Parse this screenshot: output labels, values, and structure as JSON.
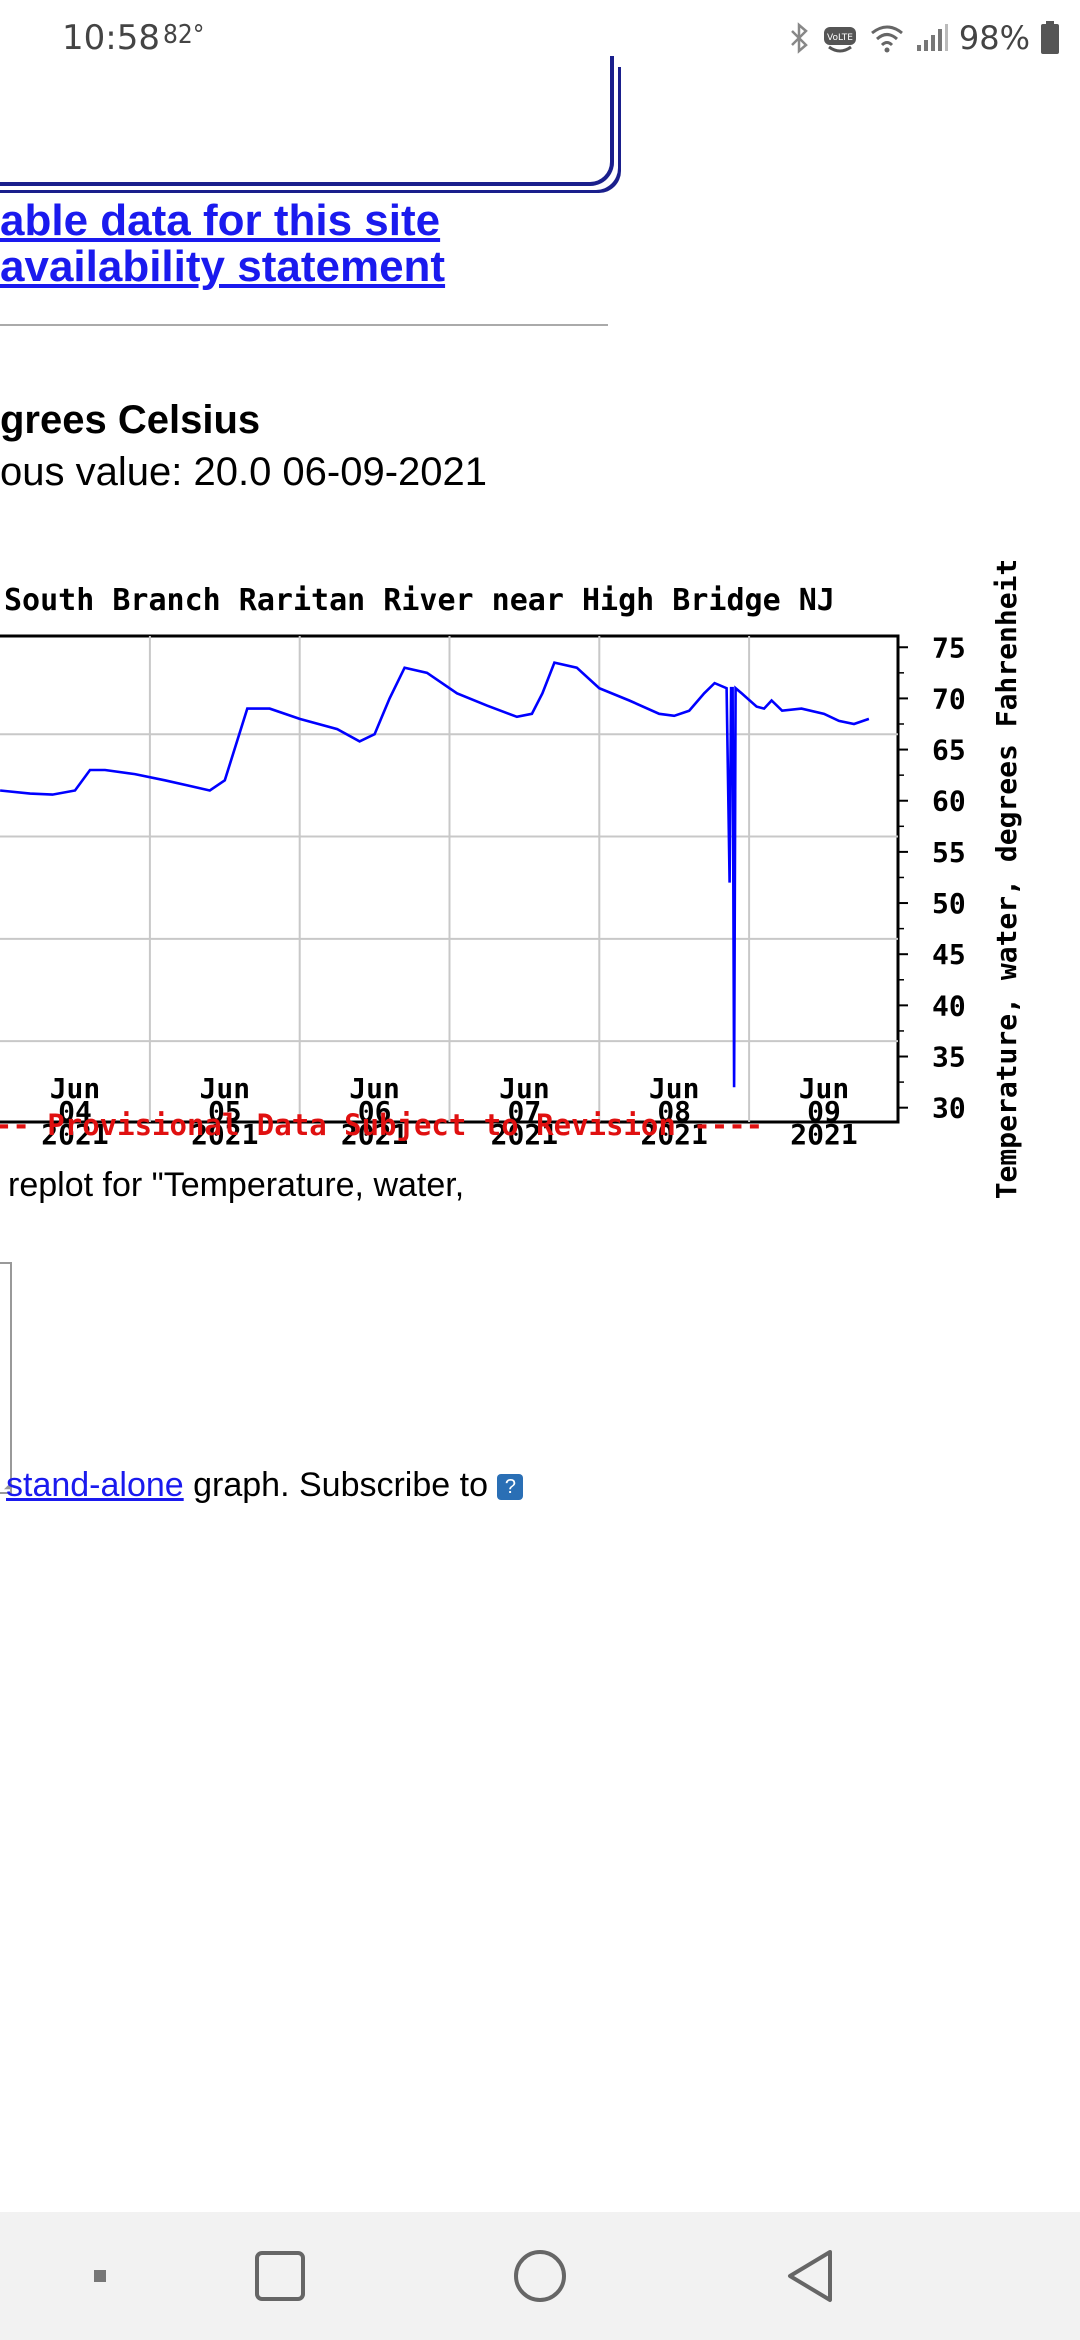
{
  "status_bar": {
    "time": "10:58",
    "temperature": "82°",
    "battery_percent": "98%"
  },
  "links": {
    "available_data": "able data for this site",
    "availability_statement": "availability statement"
  },
  "parameter": {
    "title": "grees Celsius",
    "most_recent": "ous value: 20.0 06-09-2021"
  },
  "chart_data": {
    "type": "line",
    "title": "South Branch Raritan River near High Bridge NJ",
    "ylabel": "Temperature, water, degrees Fahrenheit",
    "ylim": [
      30,
      75
    ],
    "yticks": [
      "75",
      "70",
      "65",
      "60",
      "55",
      "50",
      "45",
      "40",
      "35",
      "30"
    ],
    "xticks": [
      {
        "month": "Jun",
        "day": "04",
        "year": "2021"
      },
      {
        "month": "Jun",
        "day": "05",
        "year": "2021"
      },
      {
        "month": "Jun",
        "day": "06",
        "year": "2021"
      },
      {
        "month": "Jun",
        "day": "07",
        "year": "2021"
      },
      {
        "month": "Jun",
        "day": "08",
        "year": "2021"
      },
      {
        "month": "Jun",
        "day": "09",
        "year": "2021"
      }
    ],
    "xlim_days": [
      3.5,
      9.5
    ],
    "series": [
      {
        "name": "Temperature, water",
        "color": "#0000ff",
        "points": [
          [
            3.5,
            61.0
          ],
          [
            3.7,
            60.7
          ],
          [
            3.85,
            60.6
          ],
          [
            4.0,
            61.0
          ],
          [
            4.1,
            63.0
          ],
          [
            4.2,
            63.0
          ],
          [
            4.4,
            62.6
          ],
          [
            4.6,
            62.0
          ],
          [
            4.75,
            61.5
          ],
          [
            4.9,
            61.0
          ],
          [
            5.0,
            62.0
          ],
          [
            5.15,
            69.0
          ],
          [
            5.3,
            69.0
          ],
          [
            5.5,
            68.0
          ],
          [
            5.75,
            67.0
          ],
          [
            5.9,
            65.8
          ],
          [
            6.0,
            66.5
          ],
          [
            6.1,
            70.0
          ],
          [
            6.2,
            73.0
          ],
          [
            6.35,
            72.5
          ],
          [
            6.55,
            70.5
          ],
          [
            6.75,
            69.3
          ],
          [
            6.95,
            68.2
          ],
          [
            7.05,
            68.5
          ],
          [
            7.12,
            70.5
          ],
          [
            7.2,
            73.5
          ],
          [
            7.35,
            73.0
          ],
          [
            7.5,
            71.0
          ],
          [
            7.7,
            69.8
          ],
          [
            7.9,
            68.5
          ],
          [
            8.0,
            68.3
          ],
          [
            8.1,
            68.8
          ],
          [
            8.2,
            70.5
          ],
          [
            8.27,
            71.5
          ],
          [
            8.35,
            71.0
          ],
          [
            8.37,
            52.0
          ],
          [
            8.38,
            71.0
          ],
          [
            8.39,
            71.0
          ],
          [
            8.4,
            32.0
          ],
          [
            8.41,
            71.0
          ],
          [
            8.45,
            70.5
          ],
          [
            8.55,
            69.2
          ],
          [
            8.6,
            69.0
          ],
          [
            8.65,
            69.8
          ],
          [
            8.72,
            68.8
          ],
          [
            8.85,
            69.0
          ],
          [
            9.0,
            68.5
          ],
          [
            9.1,
            67.8
          ],
          [
            9.2,
            67.5
          ],
          [
            9.3,
            68.0
          ]
        ]
      }
    ],
    "note": "---- Provisional Data Subject to Revision ----"
  },
  "replot_text": "replot for \"Temperature, water,",
  "bottom": {
    "standalone_link": "stand-alone",
    "graph_text": " graph.",
    "subscribe_text": "  Subscribe to "
  },
  "nav": {
    "recents": "recents-button",
    "home": "home-button",
    "back": "back-button"
  }
}
